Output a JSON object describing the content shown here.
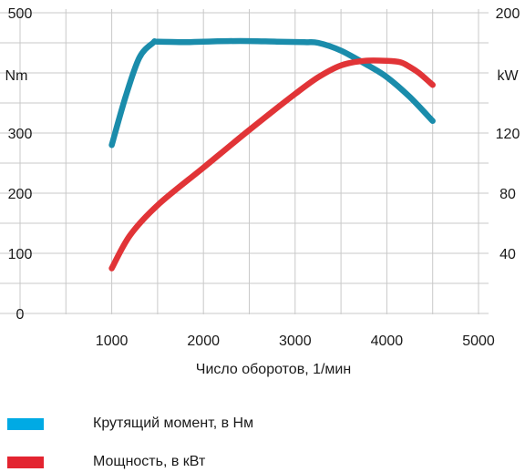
{
  "chart_data": {
    "type": "line",
    "xlabel": "Число оборотов, 1/мин",
    "x_ticks": [
      "1000",
      "2000",
      "3000",
      "4000",
      "5000"
    ],
    "xlim": [
      0,
      5000
    ],
    "y_left": {
      "unit_label": "Nm",
      "ticks": [
        "0",
        "100",
        "200",
        "300",
        "500"
      ],
      "ylim": [
        0,
        500
      ]
    },
    "y_right": {
      "unit_label": "kW",
      "ticks": [
        "40",
        "80",
        "120",
        "200"
      ],
      "ylim": [
        0,
        200
      ]
    },
    "grid": true,
    "series": [
      {
        "name": "Крутящий момент, в Нм",
        "axis": "left",
        "color": "#1a8cab",
        "points": [
          [
            1000,
            280
          ],
          [
            1150,
            360
          ],
          [
            1300,
            425
          ],
          [
            1450,
            450
          ],
          [
            1500,
            452
          ],
          [
            1800,
            451
          ],
          [
            2000,
            452
          ],
          [
            2400,
            453
          ],
          [
            2800,
            452
          ],
          [
            3100,
            451
          ],
          [
            3250,
            450
          ],
          [
            3500,
            437
          ],
          [
            3800,
            412
          ],
          [
            4000,
            393
          ],
          [
            4250,
            360
          ],
          [
            4500,
            320
          ]
        ]
      },
      {
        "name": "Мощность, в кВт",
        "axis": "right",
        "color": "#e13437",
        "points": [
          [
            1000,
            30
          ],
          [
            1200,
            52
          ],
          [
            1500,
            72
          ],
          [
            2000,
            97
          ],
          [
            2500,
            122
          ],
          [
            3000,
            146
          ],
          [
            3250,
            157
          ],
          [
            3500,
            165
          ],
          [
            3750,
            168
          ],
          [
            4000,
            168
          ],
          [
            4150,
            167
          ],
          [
            4250,
            164
          ],
          [
            4350,
            160
          ],
          [
            4500,
            152
          ]
        ]
      }
    ],
    "legend": [
      {
        "label": "Крутящий момент, в Нм",
        "color": "#00aae4"
      },
      {
        "label": "Мощность, в кВт",
        "color": "#e32430"
      }
    ],
    "legend_position": "bottom-left"
  }
}
